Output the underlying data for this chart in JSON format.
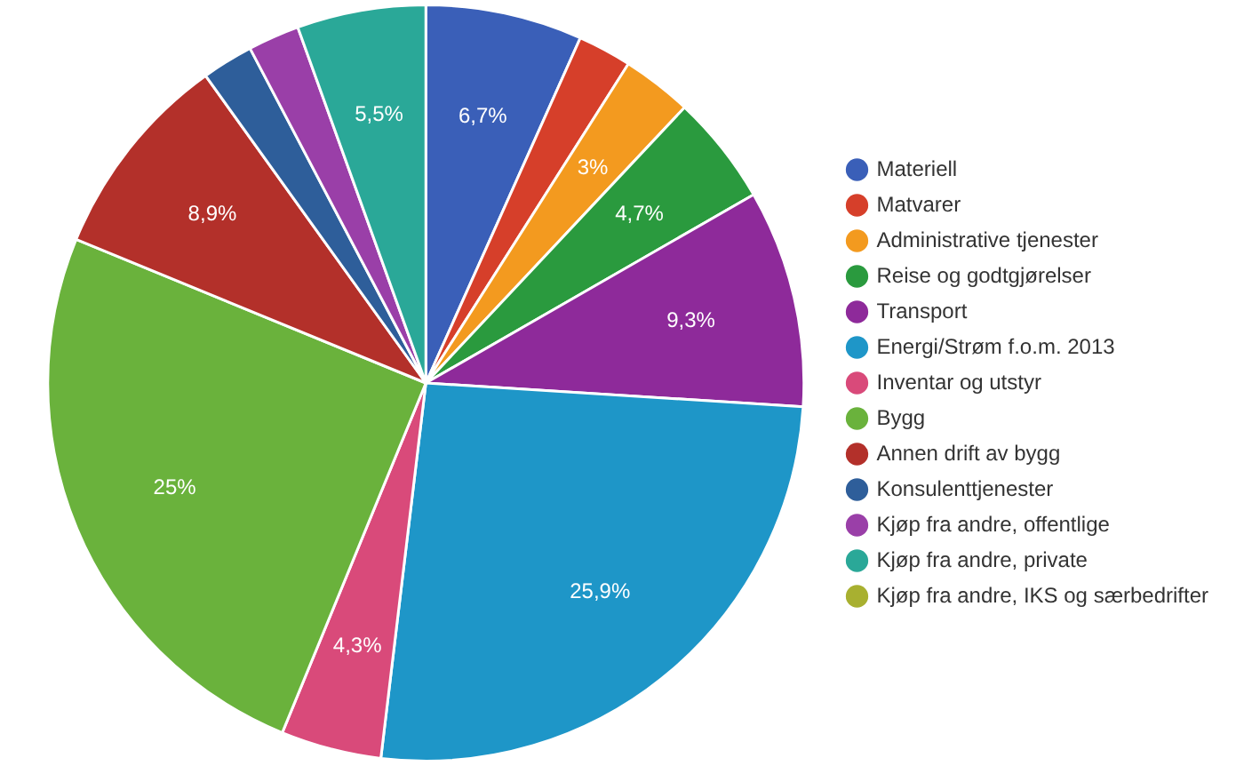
{
  "chart_data": {
    "type": "pie",
    "categories": [
      "Materiell",
      "Matvarer",
      "Administrative tjenester",
      "Reise og godtgjørelser",
      "Transport",
      "Energi/Strøm f.o.m. 2013",
      "Inventar og utstyr",
      "Bygg",
      "Annen drift av bygg",
      "Konsulenttjenester",
      "Kjøp fra andre, offentlige",
      "Kjøp fra andre, private",
      "Kjøp fra andre, IKS og særbedrifter"
    ],
    "values": [
      6.7,
      2.3,
      3,
      4.7,
      9.3,
      25.9,
      4.3,
      25,
      8.9,
      2.2,
      2.2,
      5.5,
      0
    ],
    "value_labels": [
      "6,7%",
      null,
      "3%",
      "4,7%",
      "9,3%",
      "25,9%",
      "4,3%",
      "25%",
      "8,9%",
      null,
      null,
      "5,5%",
      null
    ],
    "colors": [
      "#3a5fb8",
      "#d63f2a",
      "#f39a1f",
      "#2a9a3e",
      "#8e2a9a",
      "#1e96c8",
      "#d94a7a",
      "#6ab23c",
      "#b3302a",
      "#2e5e9a",
      "#9a3fa8",
      "#2aa898",
      "#a8b030"
    ],
    "legend": "right"
  }
}
